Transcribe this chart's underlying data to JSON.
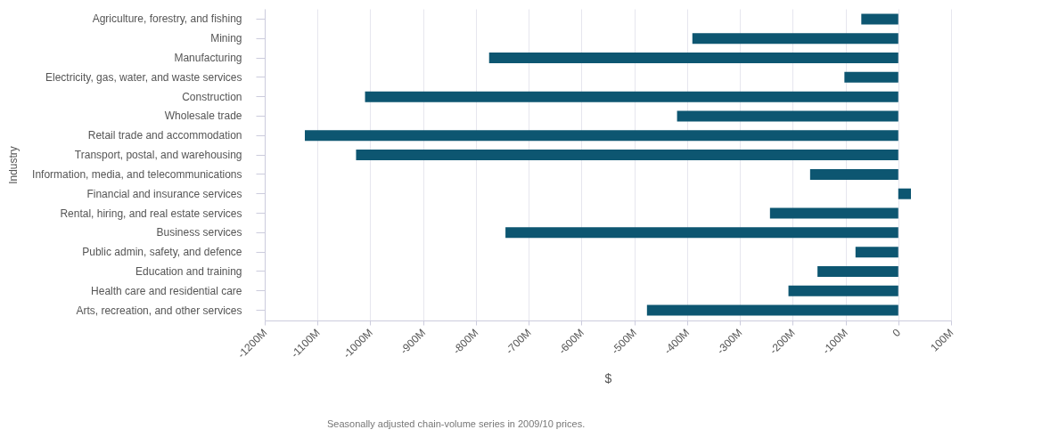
{
  "chart_data": {
    "type": "bar",
    "orientation": "horizontal",
    "ylabel": "Industry",
    "xlabel": "$",
    "categories": [
      "Agriculture, forestry, and fishing",
      "Mining",
      "Manufacturing",
      "Electricity, gas, water, and waste services",
      "Construction",
      "Wholesale trade",
      "Retail trade and accommodation",
      "Transport, postal, and warehousing",
      "Information, media, and telecommunications",
      "Financial and insurance services",
      "Rental, hiring, and real estate services",
      "Business services",
      "Public admin, safety, and defence",
      "Education and training",
      "Health care and residential care",
      "Arts, recreation, and other services"
    ],
    "values": [
      -70,
      -390,
      -775,
      -102,
      -1010,
      -419,
      -1124,
      -1027,
      -167,
      24,
      -243,
      -744,
      -81,
      -153,
      -208,
      -476
    ],
    "color": "#0d5671",
    "xlim": [
      -1200,
      100
    ],
    "xticks": [
      {
        "value": -1200,
        "label": "-1200M"
      },
      {
        "value": -1100,
        "label": "-1100M"
      },
      {
        "value": -1000,
        "label": "-1000M"
      },
      {
        "value": -900,
        "label": "-900M"
      },
      {
        "value": -800,
        "label": "-800M"
      },
      {
        "value": -700,
        "label": "-700M"
      },
      {
        "value": -600,
        "label": "-600M"
      },
      {
        "value": -500,
        "label": "-500M"
      },
      {
        "value": -400,
        "label": "-400M"
      },
      {
        "value": -300,
        "label": "-300M"
      },
      {
        "value": -200,
        "label": "-200M"
      },
      {
        "value": -100,
        "label": "-100M"
      },
      0,
      {
        "value": 100,
        "label": "100M"
      }
    ],
    "grid": "x",
    "annotations": [
      "Seasonally adjusted chain-volume series in 2009/10 prices."
    ]
  }
}
